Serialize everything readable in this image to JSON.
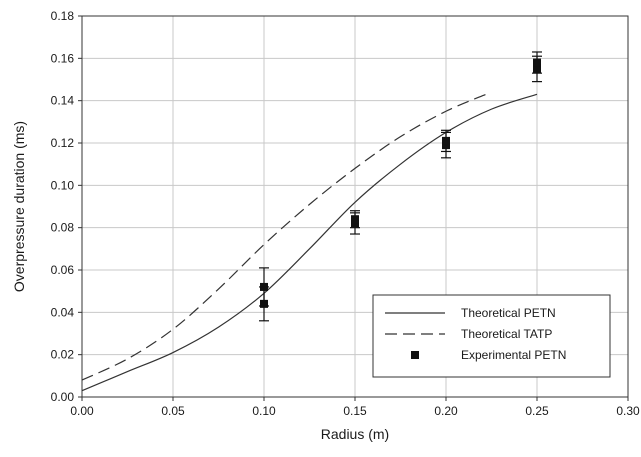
{
  "chart_data": {
    "type": "scatter",
    "title": "",
    "xlabel": "Radius (m)",
    "ylabel": "Overpressure duration (ms)",
    "xlim": [
      0.0,
      0.3
    ],
    "ylim": [
      0.0,
      0.18
    ],
    "x_ticks": [
      "0.00",
      "0.05",
      "0.10",
      "0.15",
      "0.20",
      "0.25",
      "0.30"
    ],
    "y_ticks": [
      "0.00",
      "0.02",
      "0.04",
      "0.06",
      "0.08",
      "0.10",
      "0.12",
      "0.14",
      "0.16",
      "0.18"
    ],
    "grid": true,
    "legend_position": "bottom-right",
    "series": [
      {
        "name": "Theoretical PETN",
        "type": "line",
        "style": "solid",
        "color": "#333333",
        "x": [
          0.0,
          0.025,
          0.05,
          0.075,
          0.1,
          0.125,
          0.15,
          0.175,
          0.2,
          0.225,
          0.25
        ],
        "y": [
          0.003,
          0.012,
          0.021,
          0.033,
          0.049,
          0.07,
          0.092,
          0.11,
          0.125,
          0.136,
          0.143
        ]
      },
      {
        "name": "Theoretical TATP",
        "type": "line",
        "style": "dashed",
        "color": "#333333",
        "x": [
          0.0,
          0.025,
          0.05,
          0.075,
          0.1,
          0.125,
          0.15,
          0.175,
          0.2,
          0.222
        ],
        "y": [
          0.008,
          0.018,
          0.032,
          0.051,
          0.072,
          0.091,
          0.108,
          0.123,
          0.135,
          0.143
        ]
      },
      {
        "name": "Experimental PETN",
        "type": "scatter",
        "marker": "square",
        "color": "#111111",
        "points": [
          {
            "x": 0.1,
            "y": 0.052,
            "err": 0.009
          },
          {
            "x": 0.1,
            "y": 0.044,
            "err": 0.008
          },
          {
            "x": 0.15,
            "y": 0.082,
            "err": 0.005
          },
          {
            "x": 0.15,
            "y": 0.084,
            "err": 0.004
          },
          {
            "x": 0.2,
            "y": 0.119,
            "err": 0.006
          },
          {
            "x": 0.2,
            "y": 0.121,
            "err": 0.005
          },
          {
            "x": 0.25,
            "y": 0.155,
            "err": 0.006
          },
          {
            "x": 0.25,
            "y": 0.158,
            "err": 0.005
          }
        ]
      }
    ]
  }
}
